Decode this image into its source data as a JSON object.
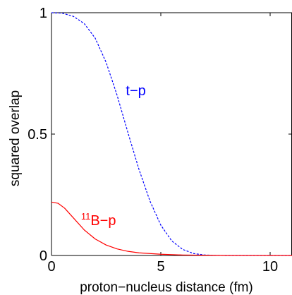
{
  "chart_data": {
    "type": "line",
    "xlabel": "proton−nucleus distance (fm)",
    "ylabel": "squared overlap",
    "xlim": [
      0,
      11
    ],
    "ylim": [
      0,
      1
    ],
    "x_ticks": [
      {
        "value": 0,
        "label": "0"
      },
      {
        "value": 5,
        "label": "5"
      },
      {
        "value": 10,
        "label": "10"
      }
    ],
    "y_ticks": [
      {
        "value": 0,
        "label": "0"
      },
      {
        "value": 0.5,
        "label": "0.5"
      },
      {
        "value": 1,
        "label": "1"
      }
    ],
    "grid": false,
    "series": [
      {
        "name": "t−p",
        "color": "#0000ff",
        "style": "dashed",
        "x": [
          0,
          0.5,
          1,
          1.5,
          2,
          2.5,
          3,
          3.5,
          4,
          4.5,
          5,
          5.5,
          6,
          6.5,
          7,
          7.5,
          8,
          9,
          10,
          11
        ],
        "y": [
          1.0,
          0.998,
          0.985,
          0.955,
          0.895,
          0.795,
          0.66,
          0.505,
          0.355,
          0.225,
          0.125,
          0.06,
          0.025,
          0.008,
          0.002,
          0.0005,
          0.0,
          0.0,
          0.0,
          0.0
        ]
      },
      {
        "name_prefix": "11",
        "name": "B−p",
        "color": "#ff0000",
        "style": "solid",
        "x": [
          0,
          0.3,
          0.6,
          1,
          1.5,
          2,
          2.5,
          3,
          3.5,
          4,
          5,
          6,
          7,
          8,
          9,
          10,
          11
        ],
        "y": [
          0.22,
          0.215,
          0.195,
          0.155,
          0.105,
          0.068,
          0.043,
          0.027,
          0.017,
          0.011,
          0.005,
          0.002,
          0.001,
          0.0,
          0.0,
          0.0,
          0.0
        ]
      }
    ]
  }
}
